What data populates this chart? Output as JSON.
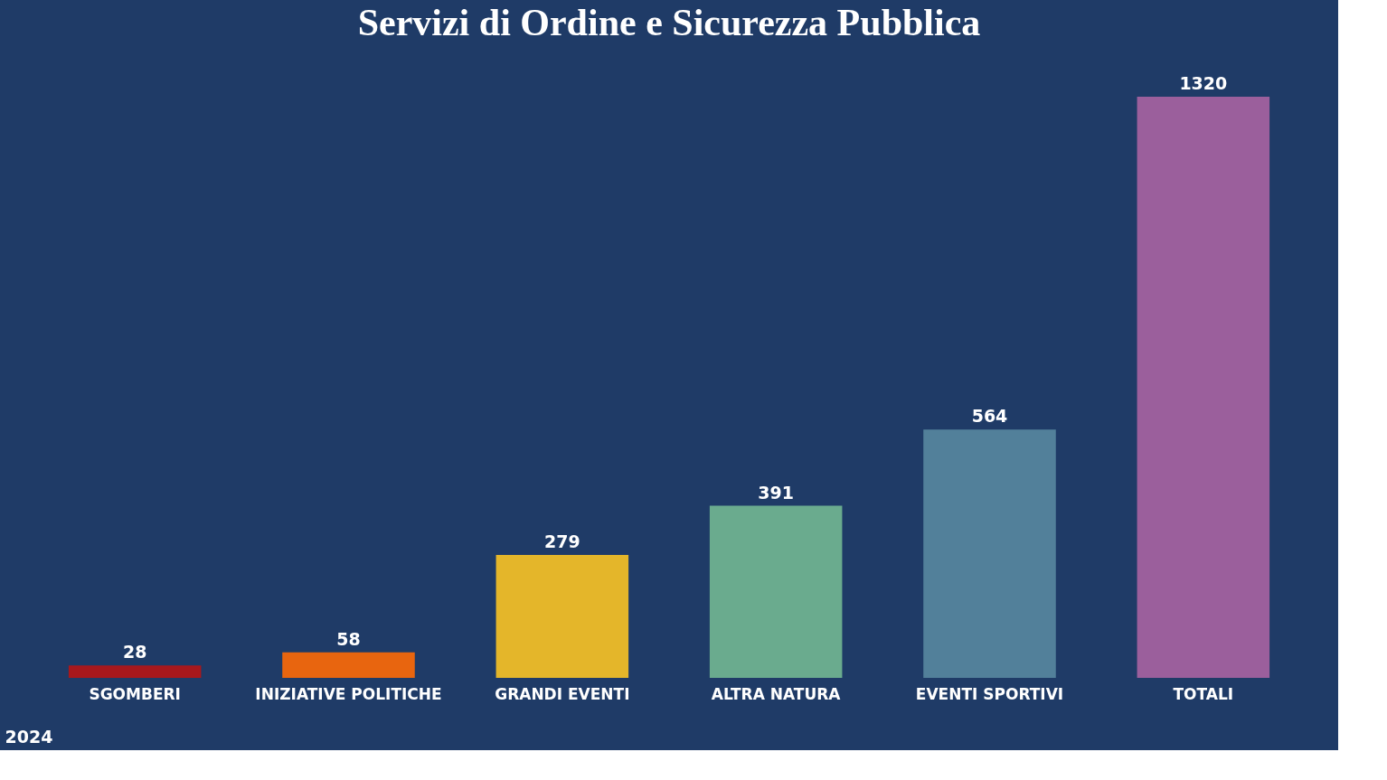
{
  "chart_data": {
    "type": "bar",
    "title": "Servizi di Ordine e Sicurezza Pubblica",
    "xlabel": "2024",
    "categories": [
      "SGOMBERI",
      "INIZIATIVE POLITICHE",
      "GRANDI EVENTI",
      "ALTRA NATURA",
      "EVENTI SPORTIVI",
      "TOTALI"
    ],
    "values": [
      28,
      58,
      279,
      391,
      564,
      1320
    ],
    "colors": [
      "#a8181c",
      "#e8650f",
      "#e4b62a",
      "#6aab8e",
      "#52809a",
      "#9b5f9c"
    ],
    "data_labels": true
  }
}
